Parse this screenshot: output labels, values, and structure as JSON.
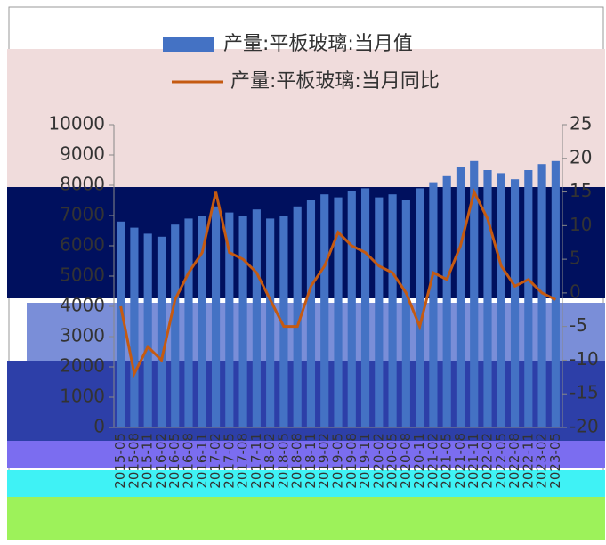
{
  "chart_data": {
    "type": "bar_line",
    "categories": [
      "2015-05",
      "2015-08",
      "2015-11",
      "2016-02",
      "2016-05",
      "2016-08",
      "2016-11",
      "2017-02",
      "2017-05",
      "2017-08",
      "2017-11",
      "2018-02",
      "2018-05",
      "2018-08",
      "2018-11",
      "2019-02",
      "2019-05",
      "2019-08",
      "2019-11",
      "2020-02",
      "2020-05",
      "2020-08",
      "2020-11",
      "2021-02",
      "2021-05",
      "2021-08",
      "2021-11",
      "2022-02",
      "2022-05",
      "2022-08",
      "2022-11",
      "2023-02",
      "2023-05"
    ],
    "series": [
      {
        "name": "产量:平板玻璃:当月值",
        "color": "#4472c4",
        "axis": "y",
        "values": [
          6800,
          6600,
          6400,
          6300,
          6700,
          6900,
          7000,
          7300,
          7100,
          7000,
          7200,
          6900,
          7000,
          7300,
          7500,
          7700,
          7600,
          7800,
          7900,
          7600,
          7700,
          7500,
          7900,
          8100,
          8300,
          8600,
          8800,
          8500,
          8400,
          8200,
          8500,
          8700,
          8800
        ]
      },
      {
        "name": "产量:平板玻璃:当月同比",
        "color": "#c55a11",
        "axis": "y2",
        "values": [
          -2,
          -12,
          -8,
          -10,
          -1,
          3,
          6,
          15,
          6,
          5,
          3,
          -1,
          -5,
          -5,
          1,
          4,
          9,
          7,
          6,
          4,
          3,
          0,
          -5,
          3,
          2,
          7,
          15,
          11,
          4,
          1,
          2,
          0,
          -1
        ]
      }
    ],
    "ylim": [
      0,
      10000
    ],
    "yticks": [
      0,
      1000,
      2000,
      3000,
      4000,
      5000,
      6000,
      7000,
      8000,
      9000,
      10000
    ],
    "y2lim": [
      -20,
      25
    ],
    "y2ticks": [
      -20,
      -15,
      -10,
      -5,
      0,
      5,
      10,
      15,
      20,
      25
    ]
  }
}
